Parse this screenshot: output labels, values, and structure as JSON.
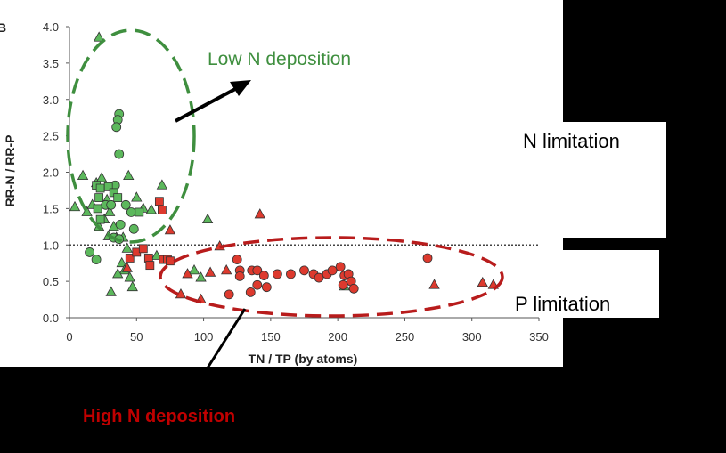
{
  "panel_letter": "B",
  "chart_data": {
    "type": "scatter",
    "xlabel": "TN / TP (by atoms)",
    "ylabel": "RR-N / RR-P",
    "xlim": [
      0,
      350
    ],
    "ylim": [
      0,
      4.0
    ],
    "x_ticks": [
      "0",
      "50",
      "100",
      "150",
      "200",
      "250",
      "300",
      "350"
    ],
    "y_ticks": [
      "0.0",
      "0.5",
      "1.0",
      "1.5",
      "2.0",
      "2.5",
      "3.0",
      "3.5",
      "4.0"
    ],
    "reference_line_y": 1.0,
    "grid": false,
    "series": [
      {
        "marker": "triangle",
        "color": "#5cb85c",
        "points": [
          [
            22,
            3.85
          ],
          [
            4,
            1.52
          ],
          [
            10,
            1.95
          ],
          [
            13,
            1.45
          ],
          [
            17,
            1.55
          ],
          [
            20,
            1.85
          ],
          [
            24,
            1.92
          ],
          [
            28,
            1.62
          ],
          [
            30,
            1.45
          ],
          [
            26,
            1.35
          ],
          [
            22,
            1.25
          ],
          [
            33,
            1.25
          ],
          [
            29,
            1.12
          ],
          [
            35,
            1.1
          ],
          [
            44,
            1.95
          ],
          [
            40,
            1.1
          ],
          [
            43,
            0.95
          ],
          [
            39,
            0.75
          ],
          [
            41,
            0.65
          ],
          [
            36,
            0.6
          ],
          [
            45,
            0.55
          ],
          [
            31,
            0.35
          ],
          [
            47,
            0.42
          ],
          [
            50,
            1.65
          ],
          [
            55,
            1.5
          ],
          [
            61,
            1.48
          ],
          [
            69,
            1.82
          ],
          [
            65,
            0.85
          ],
          [
            103,
            1.35
          ],
          [
            93,
            0.65
          ],
          [
            98,
            0.55
          ],
          [
            205,
            0.43
          ]
        ]
      },
      {
        "marker": "circle",
        "color": "#5cb85c",
        "points": [
          [
            37,
            2.8
          ],
          [
            36,
            2.72
          ],
          [
            35,
            2.62
          ],
          [
            37,
            2.25
          ],
          [
            34,
            1.82
          ],
          [
            27,
            1.55
          ],
          [
            31,
            1.55
          ],
          [
            42,
            1.55
          ],
          [
            46,
            1.45
          ],
          [
            38,
            1.28
          ],
          [
            33,
            1.1
          ],
          [
            37,
            1.08
          ],
          [
            48,
            1.22
          ],
          [
            15,
            0.9
          ],
          [
            20,
            0.8
          ]
        ]
      },
      {
        "marker": "square",
        "color": "#5cb85c",
        "points": [
          [
            20,
            1.82
          ],
          [
            23,
            1.78
          ],
          [
            29,
            1.8
          ],
          [
            22,
            1.65
          ],
          [
            21,
            1.5
          ],
          [
            23,
            1.35
          ],
          [
            33,
            1.72
          ],
          [
            36,
            1.65
          ],
          [
            52,
            1.45
          ]
        ]
      },
      {
        "marker": "square",
        "color": "#dd3a2e",
        "points": [
          [
            67,
            1.6
          ],
          [
            69,
            1.48
          ],
          [
            45,
            0.82
          ],
          [
            50,
            0.9
          ],
          [
            55,
            0.95
          ],
          [
            59,
            0.82
          ],
          [
            60,
            0.72
          ],
          [
            70,
            0.8
          ],
          [
            73,
            0.8
          ],
          [
            75,
            0.78
          ]
        ]
      },
      {
        "marker": "circle",
        "color": "#dd3a2e",
        "points": [
          [
            125,
            0.8
          ],
          [
            127,
            0.65
          ],
          [
            136,
            0.65
          ],
          [
            140,
            0.65
          ],
          [
            127,
            0.57
          ],
          [
            145,
            0.58
          ],
          [
            155,
            0.6
          ],
          [
            165,
            0.6
          ],
          [
            140,
            0.45
          ],
          [
            147,
            0.42
          ],
          [
            135,
            0.35
          ],
          [
            119,
            0.32
          ],
          [
            175,
            0.65
          ],
          [
            182,
            0.6
          ],
          [
            186,
            0.55
          ],
          [
            192,
            0.6
          ],
          [
            196,
            0.65
          ],
          [
            202,
            0.7
          ],
          [
            205,
            0.58
          ],
          [
            208,
            0.6
          ],
          [
            210,
            0.5
          ],
          [
            204,
            0.45
          ],
          [
            212,
            0.4
          ],
          [
            267,
            0.82
          ]
        ]
      },
      {
        "marker": "triangle",
        "color": "#dd3a2e",
        "points": [
          [
            142,
            1.42
          ],
          [
            75,
            1.2
          ],
          [
            112,
            0.98
          ],
          [
            43,
            0.68
          ],
          [
            88,
            0.6
          ],
          [
            105,
            0.62
          ],
          [
            83,
            0.32
          ],
          [
            98,
            0.25
          ],
          [
            117,
            0.65
          ],
          [
            272,
            0.45
          ],
          [
            308,
            0.48
          ],
          [
            316,
            0.45
          ]
        ]
      }
    ]
  },
  "annotations": {
    "low_n_label": "Low N deposition",
    "n_limitation_label": "N limitation",
    "p_limitation_label": "P limitation",
    "high_n_label": "High N deposition"
  },
  "colors": {
    "low_n": "#3f8f3f",
    "high_n": "#c00000",
    "green_marker": "#5cb85c",
    "red_marker": "#dd3a2e"
  }
}
